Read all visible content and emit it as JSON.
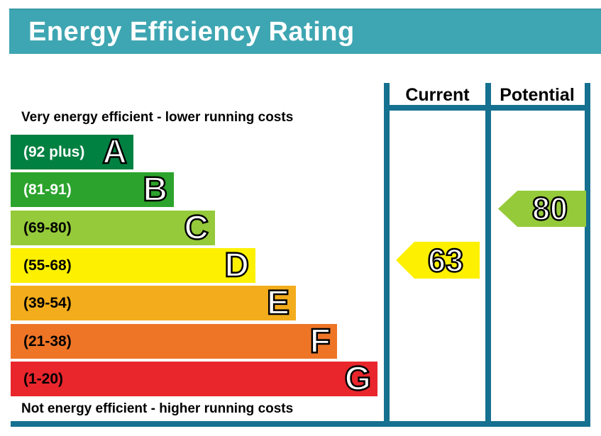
{
  "header": {
    "title": "Energy Efficiency Rating"
  },
  "columns": {
    "current": "Current",
    "potential": "Potential"
  },
  "top_caption": "Very energy efficient - lower running costs",
  "bottom_caption": "Not energy efficient - higher running costs",
  "colors": {
    "header_bg": "#3ea6b2",
    "header_text": "#ffffff",
    "frame": "#16708f",
    "caption_text": "#000000"
  },
  "chart_data": {
    "type": "bar",
    "subtype": "energy-efficiency-rating-bands",
    "title": "Energy Efficiency Rating",
    "bands": [
      {
        "letter": "A",
        "range_label": "(92 plus)",
        "min": 92,
        "color": "#008041",
        "label_color": "#ffffff"
      },
      {
        "letter": "B",
        "range_label": "(81-91)",
        "min": 81,
        "max": 91,
        "color": "#2ca32c",
        "label_color": "#ffffff"
      },
      {
        "letter": "C",
        "range_label": "(69-80)",
        "min": 69,
        "max": 80,
        "color": "#95ca3a",
        "label_color": "#000000"
      },
      {
        "letter": "D",
        "range_label": "(55-68)",
        "min": 55,
        "max": 68,
        "color": "#fdf000",
        "label_color": "#000000"
      },
      {
        "letter": "E",
        "range_label": "(39-54)",
        "min": 39,
        "max": 54,
        "color": "#f3ac1b",
        "label_color": "#000000"
      },
      {
        "letter": "F",
        "range_label": "(21-38)",
        "min": 21,
        "max": 38,
        "color": "#ee7526",
        "label_color": "#000000"
      },
      {
        "letter": "G",
        "range_label": "(1-20)",
        "min": 1,
        "max": 20,
        "color": "#e8262c",
        "label_color": "#000000"
      }
    ],
    "current": {
      "value": 63,
      "band": "D",
      "color": "#fdf000"
    },
    "potential": {
      "value": 80,
      "band": "C",
      "color": "#95ca3a"
    }
  }
}
